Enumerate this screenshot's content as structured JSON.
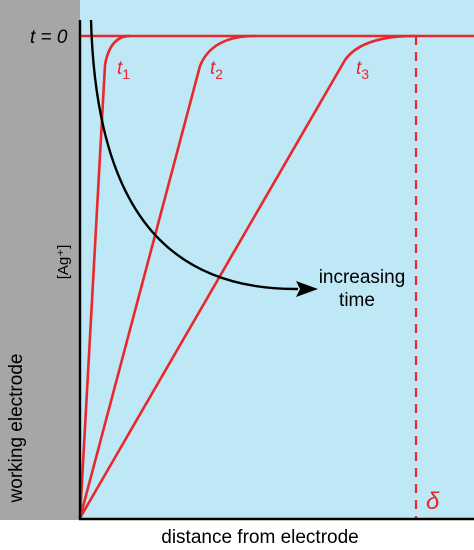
{
  "colors": {
    "background_region": "#bfe8f7",
    "electrode": "#a6a6a6",
    "curves": "#e8282c",
    "axis": "#000000",
    "arrow": "#000000"
  },
  "labels": {
    "t0": "t = 0",
    "t1": "t",
    "t1_sub": "1",
    "t2": "t",
    "t2_sub": "2",
    "t3": "t",
    "t3_sub": "3",
    "ylabel": "[Ag⁺]",
    "electrode": "working electrode",
    "xlabel": "distance from electrode",
    "delta": "δ",
    "arrow_line1": "increasing",
    "arrow_line2": "time"
  }
}
